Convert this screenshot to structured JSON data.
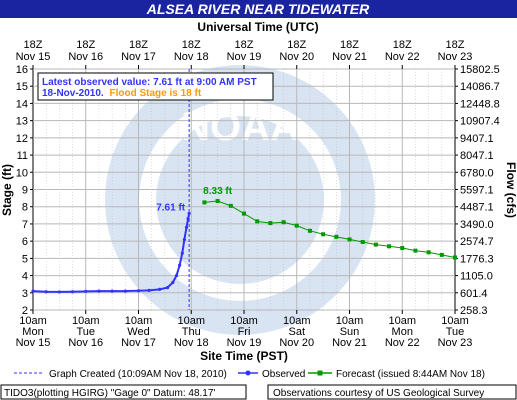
{
  "chart_data": {
    "type": "line",
    "title": "ALSEA RIVER NEAR TIDEWATER",
    "top_axis_title": "Universal Time (UTC)",
    "xlabel": "Site Time (PST)",
    "ylabel_left": "Stage (ft)",
    "ylabel_right": "Flow (cfs)",
    "x_range_days": [
      "Nov 15 10am",
      "Nov 23 10am"
    ],
    "ylim": [
      2,
      16
    ],
    "y_ticks": [
      2,
      3,
      4,
      5,
      6,
      7,
      8,
      9,
      10,
      11,
      12,
      13,
      14,
      15,
      16
    ],
    "flow_ticks": [
      {
        "stage": 2,
        "label": "258.3"
      },
      {
        "stage": 3,
        "label": "601.4"
      },
      {
        "stage": 4,
        "label": "1105.0"
      },
      {
        "stage": 5,
        "label": "1776.3"
      },
      {
        "stage": 6,
        "label": "2574.7"
      },
      {
        "stage": 7,
        "label": "3490.0"
      },
      {
        "stage": 8,
        "label": "4487.1"
      },
      {
        "stage": 9,
        "label": "5597.1"
      },
      {
        "stage": 10,
        "label": "6780.0"
      },
      {
        "stage": 11,
        "label": "8047.1"
      },
      {
        "stage": 12,
        "label": "9407.1"
      },
      {
        "stage": 13,
        "label": "10907.4"
      },
      {
        "stage": 14,
        "label": "12448.8"
      },
      {
        "stage": 15,
        "label": "14086.7"
      },
      {
        "stage": 16,
        "label": "15802.5"
      }
    ],
    "bottom_ticks": [
      {
        "l1": "10am",
        "l2": "Mon",
        "l3": "Nov 15"
      },
      {
        "l1": "10am",
        "l2": "Tue",
        "l3": "Nov 16"
      },
      {
        "l1": "10am",
        "l2": "Wed",
        "l3": "Nov 17"
      },
      {
        "l1": "10am",
        "l2": "Thu",
        "l3": "Nov 18"
      },
      {
        "l1": "10am",
        "l2": "Fri",
        "l3": "Nov 19"
      },
      {
        "l1": "10am",
        "l2": "Sat",
        "l3": "Nov 20"
      },
      {
        "l1": "10am",
        "l2": "Sun",
        "l3": "Nov 21"
      },
      {
        "l1": "10am",
        "l2": "Mon",
        "l3": "Nov 22"
      },
      {
        "l1": "10am",
        "l2": "Tue",
        "l3": "Nov 23"
      }
    ],
    "top_ticks": [
      {
        "l1": "18Z",
        "l2": "Nov 15"
      },
      {
        "l1": "18Z",
        "l2": "Nov 16"
      },
      {
        "l1": "18Z",
        "l2": "Nov 17"
      },
      {
        "l1": "18Z",
        "l2": "Nov 18"
      },
      {
        "l1": "18Z",
        "l2": "Nov 19"
      },
      {
        "l1": "18Z",
        "l2": "Nov 20"
      },
      {
        "l1": "18Z",
        "l2": "Nov 21"
      },
      {
        "l1": "18Z",
        "l2": "Nov 22"
      },
      {
        "l1": "18Z",
        "l2": "Nov 23"
      }
    ],
    "latest_obs_line1": "Latest observed value: 7.61 ft at 9:00 AM PST",
    "latest_obs_date": "18-Nov-2010.",
    "flood_stage_text": "Flood Stage is 18 ft",
    "observed_label": "7.61 ft",
    "forecast_peak_label": "8.33 ft",
    "now_day": 2.96,
    "series": [
      {
        "name": "Observed",
        "color": "#3333ff",
        "x_day": [
          0,
          0.25,
          0.5,
          0.75,
          1.0,
          1.25,
          1.5,
          1.75,
          2.0,
          2.2,
          2.4,
          2.55,
          2.65,
          2.72,
          2.78,
          2.83,
          2.87,
          2.91,
          2.94,
          2.96
        ],
        "y": [
          3.1,
          3.06,
          3.05,
          3.06,
          3.08,
          3.1,
          3.1,
          3.1,
          3.12,
          3.14,
          3.2,
          3.3,
          3.6,
          4.0,
          4.6,
          5.3,
          6.1,
          6.8,
          7.3,
          7.61
        ]
      },
      {
        "name": "Forecast (issued 8:44AM Nov 18)",
        "color": "#009900",
        "x_day": [
          3.25,
          3.5,
          3.75,
          4.0,
          4.25,
          4.5,
          4.75,
          5.0,
          5.25,
          5.5,
          5.75,
          6.0,
          6.25,
          6.5,
          6.75,
          7.0,
          7.25,
          7.5,
          7.75,
          8.0
        ],
        "y": [
          8.25,
          8.33,
          8.05,
          7.6,
          7.15,
          7.05,
          7.1,
          6.9,
          6.6,
          6.4,
          6.25,
          6.1,
          5.95,
          5.8,
          5.7,
          5.6,
          5.45,
          5.35,
          5.2,
          5.05
        ]
      }
    ]
  },
  "legend": {
    "graph_created": "Graph Created (10:09AM Nov 18, 2010)",
    "observed": "Observed",
    "forecast": "Forecast (issued 8:44AM Nov 18)"
  },
  "footer": {
    "left": "TIDO3(plotting HGIRG) \"Gage 0\" Datum: 48.17'",
    "right": "Observations courtesy of US Geological Survey"
  },
  "watermark": {
    "text": "NATIONAL OCEANIC AND ATMOSPHERIC ADMINISTRATION",
    "logo": "NOAA",
    "dept": "U.S. DEPARTMENT OF COMMERCE"
  },
  "colors": {
    "title_bg": "#1a23a0",
    "grid": "#b8b8b8",
    "observed": "#3333ff",
    "forecast": "#009900",
    "flood": "#ff9900"
  }
}
